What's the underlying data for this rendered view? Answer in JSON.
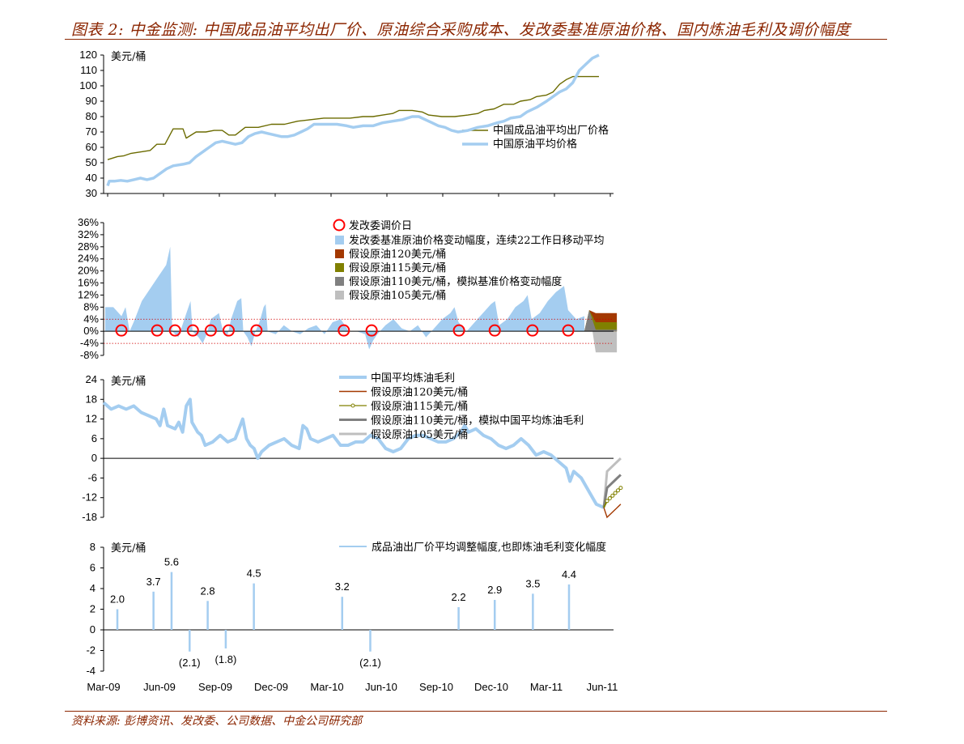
{
  "header": {
    "title": "图表 2: 中金监测: 中国成品油平均出厂价、原油综合采购成本、发改委基准原油价格、国内炼油毛利及调价幅度",
    "source": "资料来源: 彭博资讯、发改委、公司数据、中金公司研究部"
  },
  "chart_data": [
    {
      "type": "line",
      "unit": "美元/桶",
      "ylim": [
        30,
        120
      ],
      "yticks": [
        "120",
        "110",
        "100",
        "90",
        "80",
        "70",
        "60",
        "50",
        "40",
        "30"
      ],
      "series": [
        {
          "name": "中国成品油平均出厂价格",
          "color": "#6b6b00",
          "points": [
            [
              0,
              52
            ],
            [
              3,
              53
            ],
            [
              6,
              54
            ],
            [
              10,
              54.5
            ],
            [
              14,
              56
            ],
            [
              20,
              57
            ],
            [
              26,
              58
            ],
            [
              30,
              62
            ],
            [
              35,
              62
            ],
            [
              40,
              72
            ],
            [
              46,
              72
            ],
            [
              48,
              66
            ],
            [
              54,
              70
            ],
            [
              60,
              70
            ],
            [
              65,
              71
            ],
            [
              70,
              71
            ],
            [
              74,
              68
            ],
            [
              78,
              68
            ],
            [
              84,
              73
            ],
            [
              92,
              73
            ],
            [
              100,
              75
            ],
            [
              108,
              75
            ],
            [
              116,
              77
            ],
            [
              124,
              78
            ],
            [
              132,
              79
            ],
            [
              140,
              79
            ],
            [
              148,
              79
            ],
            [
              156,
              80
            ],
            [
              162,
              80
            ],
            [
              168,
              81
            ],
            [
              174,
              82
            ],
            [
              178,
              84
            ],
            [
              186,
              84
            ],
            [
              192,
              83
            ],
            [
              196,
              81
            ],
            [
              204,
              80
            ],
            [
              212,
              80
            ],
            [
              220,
              81
            ],
            [
              226,
              82
            ],
            [
              230,
              84
            ],
            [
              236,
              85
            ],
            [
              242,
              88
            ],
            [
              248,
              88
            ],
            [
              252,
              90
            ],
            [
              258,
              91
            ],
            [
              262,
              93
            ],
            [
              268,
              94
            ],
            [
              272,
              96
            ],
            [
              276,
              101
            ],
            [
              280,
              104
            ],
            [
              284,
              106
            ],
            [
              290,
              106
            ],
            [
              300,
              106
            ]
          ]
        },
        {
          "name": "中国原油平均价格",
          "color": "#a4cdf0",
          "points": [
            [
              0,
              35
            ],
            [
              1,
              38
            ],
            [
              4,
              38
            ],
            [
              8,
              38.5
            ],
            [
              12,
              38
            ],
            [
              16,
              39
            ],
            [
              20,
              40
            ],
            [
              24,
              39
            ],
            [
              28,
              40
            ],
            [
              32,
              43
            ],
            [
              36,
              46
            ],
            [
              40,
              48
            ],
            [
              46,
              49
            ],
            [
              50,
              50
            ],
            [
              54,
              54
            ],
            [
              58,
              57
            ],
            [
              62,
              60
            ],
            [
              66,
              63
            ],
            [
              70,
              64
            ],
            [
              74,
              63
            ],
            [
              78,
              62
            ],
            [
              82,
              63
            ],
            [
              86,
              67
            ],
            [
              90,
              69
            ],
            [
              94,
              70
            ],
            [
              98,
              69
            ],
            [
              102,
              68
            ],
            [
              106,
              67
            ],
            [
              110,
              67
            ],
            [
              114,
              68
            ],
            [
              118,
              70
            ],
            [
              122,
              72
            ],
            [
              126,
              75
            ],
            [
              130,
              75
            ],
            [
              134,
              75
            ],
            [
              140,
              75
            ],
            [
              146,
              74
            ],
            [
              150,
              73
            ],
            [
              156,
              74
            ],
            [
              162,
              74
            ],
            [
              168,
              76
            ],
            [
              174,
              77
            ],
            [
              180,
              78
            ],
            [
              186,
              80
            ],
            [
              190,
              80
            ],
            [
              194,
              78
            ],
            [
              198,
              76
            ],
            [
              202,
              74
            ],
            [
              206,
              73
            ],
            [
              210,
              71
            ],
            [
              214,
              70
            ],
            [
              220,
              71
            ],
            [
              226,
              73
            ],
            [
              232,
              74
            ],
            [
              238,
              76
            ],
            [
              242,
              77
            ],
            [
              246,
              79
            ],
            [
              252,
              80
            ],
            [
              256,
              83
            ],
            [
              262,
              86
            ],
            [
              268,
              90
            ],
            [
              272,
              93
            ],
            [
              276,
              96
            ],
            [
              280,
              98
            ],
            [
              284,
              102
            ],
            [
              288,
              110
            ],
            [
              292,
              114
            ],
            [
              296,
              118
            ],
            [
              300,
              120
            ]
          ]
        }
      ]
    },
    {
      "type": "area",
      "ylim": [
        -8,
        36
      ],
      "yticks": [
        "36%",
        "32%",
        "28%",
        "24%",
        "20%",
        "16%",
        "12%",
        "8%",
        "4%",
        "0%",
        "-4%",
        "-8%"
      ],
      "threshold_pct": [
        4,
        -4
      ],
      "legend": {
        "circle": "发改委调价日",
        "moving_avg": "发改委基准原油价格变动幅度，连续22工作日移动平均",
        "s120": "假设原油120美元/桶",
        "s115": "假设原油115美元/桶",
        "s110": "假设原油110美元/桶，模拟基准价格变动幅度",
        "s105": "假设原油105美元/桶"
      },
      "colors": {
        "moving_avg": "#a4cdf0",
        "s120": "#a33800",
        "s115": "#808000",
        "s110": "#808080",
        "s105": "#bfbfbf",
        "circle": "#ff0000"
      },
      "moving_avg": [
        [
          0,
          8
        ],
        [
          4,
          8
        ],
        [
          8,
          5
        ],
        [
          10,
          8
        ],
        [
          12,
          0
        ],
        [
          14,
          3
        ],
        [
          18,
          10
        ],
        [
          22,
          14
        ],
        [
          26,
          18
        ],
        [
          30,
          22
        ],
        [
          32,
          28
        ],
        [
          33,
          0
        ],
        [
          36,
          -2
        ],
        [
          40,
          6
        ],
        [
          42,
          10
        ],
        [
          43,
          0
        ],
        [
          46,
          -2
        ],
        [
          48,
          -4
        ],
        [
          50,
          -1
        ],
        [
          52,
          4
        ],
        [
          56,
          6
        ],
        [
          58,
          0
        ],
        [
          60,
          -2
        ],
        [
          62,
          4
        ],
        [
          65,
          10
        ],
        [
          67,
          11
        ],
        [
          68,
          0
        ],
        [
          70,
          -2
        ],
        [
          72,
          -5
        ],
        [
          74,
          0
        ],
        [
          76,
          3
        ],
        [
          78,
          8
        ],
        [
          79,
          9
        ],
        [
          80,
          0
        ],
        [
          84,
          -1
        ],
        [
          88,
          2
        ],
        [
          92,
          0
        ],
        [
          96,
          -1
        ],
        [
          100,
          1
        ],
        [
          104,
          2
        ],
        [
          108,
          -1
        ],
        [
          112,
          3
        ],
        [
          116,
          4
        ],
        [
          120,
          0
        ],
        [
          124,
          0
        ],
        [
          128,
          -1
        ],
        [
          130,
          -6
        ],
        [
          132,
          -3
        ],
        [
          134,
          -1
        ],
        [
          138,
          2
        ],
        [
          142,
          4
        ],
        [
          146,
          1
        ],
        [
          150,
          0
        ],
        [
          154,
          2
        ],
        [
          158,
          -2
        ],
        [
          162,
          1
        ],
        [
          166,
          4
        ],
        [
          170,
          6
        ],
        [
          172,
          8
        ],
        [
          174,
          3
        ],
        [
          178,
          0
        ],
        [
          182,
          3
        ],
        [
          186,
          6
        ],
        [
          190,
          9
        ],
        [
          192,
          10
        ],
        [
          194,
          2
        ],
        [
          198,
          4
        ],
        [
          202,
          8
        ],
        [
          206,
          10
        ],
        [
          208,
          12
        ],
        [
          210,
          4
        ],
        [
          214,
          6
        ],
        [
          218,
          10
        ],
        [
          222,
          13
        ],
        [
          226,
          15
        ],
        [
          228,
          7
        ],
        [
          232,
          4
        ],
        [
          236,
          5
        ]
      ],
      "adjust_day_idx": [
        6,
        24,
        33,
        42,
        51,
        60,
        74,
        118,
        132,
        176,
        194,
        213,
        231
      ],
      "projection_start_idx": 236,
      "projection_end_idx": 252,
      "s120_level": 6,
      "s115_level": 3,
      "s110_level": 0.5,
      "s105_level": -7
    },
    {
      "type": "line",
      "unit": "美元/桶",
      "ylim": [
        -18,
        24
      ],
      "yticks": [
        "24",
        "18",
        "12",
        "6",
        "0",
        "-6",
        "-12",
        "-18"
      ],
      "legend": {
        "margin": "中国平均炼油毛利",
        "s120": "假设原油120美元/桶",
        "s115": "假设原油115美元/桶",
        "s110": "假设原油110美元/桶，模拟中国平均炼油毛利",
        "s105": "假设原油105美元/桶"
      },
      "colors": {
        "margin": "#a4cdf0",
        "s120": "#a33800",
        "s115": "#808000",
        "s110": "#808080",
        "s105": "#bfbfbf"
      },
      "margin": [
        [
          0,
          17
        ],
        [
          4,
          15
        ],
        [
          8,
          16
        ],
        [
          12,
          15
        ],
        [
          16,
          16
        ],
        [
          20,
          14
        ],
        [
          24,
          13
        ],
        [
          28,
          12
        ],
        [
          30,
          10
        ],
        [
          32,
          15
        ],
        [
          34,
          10
        ],
        [
          38,
          9
        ],
        [
          40,
          11
        ],
        [
          42,
          8
        ],
        [
          44,
          16
        ],
        [
          46,
          18
        ],
        [
          47,
          11
        ],
        [
          50,
          8
        ],
        [
          52,
          7
        ],
        [
          54,
          4
        ],
        [
          58,
          5
        ],
        [
          62,
          7
        ],
        [
          66,
          5
        ],
        [
          70,
          6
        ],
        [
          72,
          9
        ],
        [
          74,
          12
        ],
        [
          76,
          6
        ],
        [
          78,
          4
        ],
        [
          80,
          3
        ],
        [
          82,
          0
        ],
        [
          84,
          2
        ],
        [
          88,
          4
        ],
        [
          92,
          5
        ],
        [
          96,
          6
        ],
        [
          100,
          4
        ],
        [
          104,
          3
        ],
        [
          106,
          10
        ],
        [
          108,
          9
        ],
        [
          110,
          6
        ],
        [
          114,
          5
        ],
        [
          118,
          6
        ],
        [
          122,
          7
        ],
        [
          126,
          4
        ],
        [
          130,
          4
        ],
        [
          134,
          5
        ],
        [
          138,
          5
        ],
        [
          142,
          7
        ],
        [
          146,
          6
        ],
        [
          150,
          3
        ],
        [
          154,
          2
        ],
        [
          158,
          3
        ],
        [
          162,
          6
        ],
        [
          166,
          7
        ],
        [
          170,
          7
        ],
        [
          174,
          6
        ],
        [
          178,
          5
        ],
        [
          182,
          5
        ],
        [
          186,
          6
        ],
        [
          190,
          8
        ],
        [
          192,
          10
        ],
        [
          194,
          8
        ],
        [
          198,
          9
        ],
        [
          202,
          7
        ],
        [
          206,
          6
        ],
        [
          210,
          4
        ],
        [
          214,
          3
        ],
        [
          218,
          4
        ],
        [
          222,
          6
        ],
        [
          226,
          4
        ],
        [
          230,
          1
        ],
        [
          234,
          2
        ],
        [
          238,
          1
        ],
        [
          242,
          -1
        ],
        [
          246,
          -3
        ],
        [
          248,
          -7
        ],
        [
          250,
          -4
        ],
        [
          254,
          -6
        ],
        [
          258,
          -10
        ],
        [
          262,
          -14
        ],
        [
          266,
          -15
        ]
      ],
      "proj_start": [
        266,
        -15
      ],
      "proj_end": {
        "s120": -14,
        "s115": -9,
        "s110": -5,
        "s105": 0
      }
    },
    {
      "type": "bar",
      "unit": "美元/桶",
      "ylim": [
        -4,
        8
      ],
      "yticks": [
        "8",
        "6",
        "4",
        "2",
        "0",
        "-2",
        "-4"
      ],
      "legend": "成品油出厂价平均调整幅度,也即炼油毛利变化幅度",
      "color": "#a4cdf0",
      "bars": [
        {
          "idx": 6,
          "value": 2.0,
          "label": "2.0"
        },
        {
          "idx": 24,
          "value": 3.7,
          "label": "3.7"
        },
        {
          "idx": 33,
          "value": 5.6,
          "label": "5.6"
        },
        {
          "idx": 42,
          "value": -2.1,
          "label": "(2.1)"
        },
        {
          "idx": 51,
          "value": 2.8,
          "label": "2.8"
        },
        {
          "idx": 60,
          "value": -1.8,
          "label": "(1.8)"
        },
        {
          "idx": 74,
          "value": 4.5,
          "label": "4.5"
        },
        {
          "idx": 118,
          "value": 3.2,
          "label": "3.2"
        },
        {
          "idx": 132,
          "value": -2.1,
          "label": "(2.1)"
        },
        {
          "idx": 176,
          "value": 2.2,
          "label": "2.2"
        },
        {
          "idx": 194,
          "value": 2.9,
          "label": "2.9"
        },
        {
          "idx": 213,
          "value": 3.5,
          "label": "3.5"
        },
        {
          "idx": 231,
          "value": 4.4,
          "label": "4.4"
        }
      ],
      "xticks": [
        "Mar-09",
        "Jun-09",
        "Sep-09",
        "Dec-09",
        "Mar-10",
        "Jun-10",
        "Sep-10",
        "Dec-10",
        "Mar-11",
        "Jun-11"
      ]
    }
  ]
}
